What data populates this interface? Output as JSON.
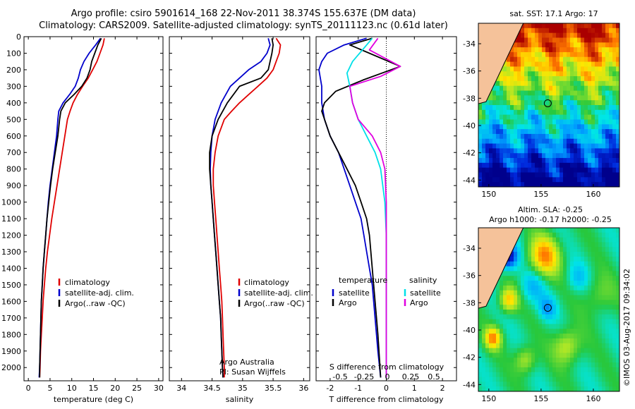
{
  "header": {
    "line1": "Argo profile: csiro 5901614_168 22-Nov-2011 38.374S 155.637E (DM data)",
    "line2": "Climatology: CARS2009. Satellite-adjusted climatology: synTS_20111123.nc (0.61d later)"
  },
  "colors": {
    "climatology": "#e00000",
    "satellite": "#0000cc",
    "argo": "#000000",
    "salinity_satellite": "#00e0e8",
    "salinity_argo": "#e000e0",
    "land": "#f5c29a"
  },
  "chart_data": [
    {
      "type": "line",
      "id": "temperature",
      "xlabel": "temperature (deg C)",
      "ylabel": "",
      "xlim": [
        -1,
        31
      ],
      "ylim": [
        2080,
        0
      ],
      "xticks": [
        0,
        5,
        10,
        15,
        20,
        25,
        30
      ],
      "yticks": [
        0,
        100,
        200,
        300,
        400,
        500,
        600,
        700,
        800,
        900,
        1000,
        1100,
        1200,
        1300,
        1400,
        1500,
        1600,
        1700,
        1800,
        1900,
        2000
      ],
      "legend": [
        "climatology",
        "satellite-adj. clim.",
        "Argo(..raw -QC)"
      ],
      "series": [
        {
          "name": "climatology",
          "color": "#e00000",
          "points": [
            [
              17.5,
              10
            ],
            [
              17.2,
              50
            ],
            [
              16.5,
              100
            ],
            [
              15.8,
              150
            ],
            [
              14.8,
              200
            ],
            [
              13.8,
              250
            ],
            [
              12.5,
              300
            ],
            [
              11.3,
              350
            ],
            [
              10.3,
              400
            ],
            [
              9.6,
              450
            ],
            [
              9.0,
              500
            ],
            [
              8.4,
              600
            ],
            [
              7.8,
              700
            ],
            [
              7.2,
              800
            ],
            [
              6.6,
              900
            ],
            [
              6.0,
              1000
            ],
            [
              5.4,
              1100
            ],
            [
              4.9,
              1200
            ],
            [
              4.4,
              1300
            ],
            [
              4.0,
              1400
            ],
            [
              3.7,
              1500
            ],
            [
              3.4,
              1600
            ],
            [
              3.2,
              1700
            ],
            [
              3.0,
              1800
            ],
            [
              2.8,
              1900
            ],
            [
              2.7,
              2000
            ],
            [
              2.6,
              2060
            ]
          ]
        },
        {
          "name": "satellite-adj. clim.",
          "color": "#0000cc",
          "points": [
            [
              16.6,
              10
            ],
            [
              15.5,
              50
            ],
            [
              14.0,
              100
            ],
            [
              12.8,
              150
            ],
            [
              12.0,
              200
            ],
            [
              11.5,
              250
            ],
            [
              10.8,
              300
            ],
            [
              9.5,
              350
            ],
            [
              8.0,
              400
            ],
            [
              7.0,
              450
            ],
            [
              6.8,
              500
            ],
            [
              6.5,
              600
            ],
            [
              6.0,
              700
            ],
            [
              5.5,
              800
            ],
            [
              5.0,
              900
            ],
            [
              4.6,
              1000
            ],
            [
              4.3,
              1100
            ],
            [
              4.0,
              1200
            ],
            [
              3.7,
              1300
            ],
            [
              3.4,
              1400
            ],
            [
              3.2,
              1500
            ],
            [
              3.0,
              1600
            ],
            [
              2.9,
              1700
            ],
            [
              2.8,
              1800
            ],
            [
              2.7,
              1900
            ],
            [
              2.6,
              2000
            ],
            [
              2.5,
              2060
            ]
          ]
        },
        {
          "name": "Argo(..raw -QC)",
          "color": "#000000",
          "points": [
            [
              16.8,
              10
            ],
            [
              16.0,
              50
            ],
            [
              15.3,
              100
            ],
            [
              14.6,
              150
            ],
            [
              14.2,
              200
            ],
            [
              13.5,
              250
            ],
            [
              12.3,
              300
            ],
            [
              10.5,
              350
            ],
            [
              8.5,
              400
            ],
            [
              7.5,
              450
            ],
            [
              7.2,
              500
            ],
            [
              6.8,
              600
            ],
            [
              6.2,
              700
            ],
            [
              5.6,
              800
            ],
            [
              5.1,
              900
            ],
            [
              4.7,
              1000
            ],
            [
              4.3,
              1100
            ],
            [
              4.0,
              1200
            ],
            [
              3.7,
              1300
            ],
            [
              3.4,
              1400
            ],
            [
              3.2,
              1500
            ],
            [
              3.0,
              1600
            ],
            [
              2.9,
              1700
            ],
            [
              2.8,
              1800
            ],
            [
              2.7,
              1900
            ],
            [
              2.6,
              2000
            ],
            [
              2.6,
              2060
            ]
          ]
        }
      ]
    },
    {
      "type": "line",
      "id": "salinity",
      "xlabel": "salinity",
      "ylabel": "",
      "xlim": [
        33.8,
        36.1
      ],
      "ylim": [
        2080,
        0
      ],
      "xticks": [
        34,
        34.5,
        35,
        35.5,
        36
      ],
      "legend": [
        "climatology",
        "satellite-adj. clim.",
        "Argo(..raw -QC)"
      ],
      "annotation": [
        "Argo Australia",
        "PI: Susan Wijffels"
      ],
      "series": [
        {
          "name": "climatology",
          "color": "#e00000",
          "points": [
            [
              35.55,
              10
            ],
            [
              35.62,
              50
            ],
            [
              35.6,
              100
            ],
            [
              35.55,
              150
            ],
            [
              35.5,
              200
            ],
            [
              35.4,
              250
            ],
            [
              35.25,
              300
            ],
            [
              35.1,
              350
            ],
            [
              34.95,
              400
            ],
            [
              34.82,
              450
            ],
            [
              34.7,
              500
            ],
            [
              34.6,
              600
            ],
            [
              34.55,
              700
            ],
            [
              34.52,
              800
            ],
            [
              34.52,
              900
            ],
            [
              34.54,
              1000
            ],
            [
              34.56,
              1100
            ],
            [
              34.58,
              1200
            ],
            [
              34.6,
              1300
            ],
            [
              34.62,
              1400
            ],
            [
              34.64,
              1500
            ],
            [
              34.66,
              1600
            ],
            [
              34.67,
              1700
            ],
            [
              34.68,
              1800
            ],
            [
              34.69,
              1900
            ],
            [
              34.7,
              2000
            ],
            [
              34.7,
              2060
            ]
          ]
        },
        {
          "name": "satellite-adj. clim.",
          "color": "#0000cc",
          "points": [
            [
              35.42,
              10
            ],
            [
              35.45,
              50
            ],
            [
              35.4,
              100
            ],
            [
              35.3,
              150
            ],
            [
              35.1,
              200
            ],
            [
              34.95,
              250
            ],
            [
              34.8,
              300
            ],
            [
              34.65,
              400
            ],
            [
              34.55,
              500
            ],
            [
              34.5,
              600
            ],
            [
              34.48,
              700
            ],
            [
              34.47,
              800
            ],
            [
              34.48,
              900
            ],
            [
              34.5,
              1000
            ],
            [
              34.52,
              1100
            ],
            [
              34.54,
              1200
            ],
            [
              34.56,
              1300
            ],
            [
              34.58,
              1400
            ],
            [
              34.6,
              1500
            ],
            [
              34.62,
              1600
            ],
            [
              34.64,
              1700
            ],
            [
              34.65,
              1800
            ],
            [
              34.66,
              1900
            ],
            [
              34.67,
              2000
            ],
            [
              34.68,
              2060
            ]
          ]
        },
        {
          "name": "Argo(..raw -QC)",
          "color": "#000000",
          "points": [
            [
              35.48,
              10
            ],
            [
              35.5,
              50
            ],
            [
              35.48,
              100
            ],
            [
              35.45,
              150
            ],
            [
              35.42,
              200
            ],
            [
              35.3,
              250
            ],
            [
              34.95,
              300
            ],
            [
              34.75,
              400
            ],
            [
              34.6,
              500
            ],
            [
              34.5,
              600
            ],
            [
              34.46,
              700
            ],
            [
              34.46,
              800
            ],
            [
              34.48,
              900
            ],
            [
              34.5,
              1000
            ],
            [
              34.52,
              1100
            ],
            [
              34.54,
              1200
            ],
            [
              34.56,
              1300
            ],
            [
              34.58,
              1400
            ],
            [
              34.6,
              1500
            ],
            [
              34.62,
              1600
            ],
            [
              34.64,
              1700
            ],
            [
              34.65,
              1800
            ],
            [
              34.66,
              1900
            ],
            [
              34.67,
              2000
            ],
            [
              34.68,
              2060
            ]
          ]
        }
      ]
    },
    {
      "type": "line",
      "id": "difference",
      "xlabel": "T difference from climatology",
      "xlabel_top": "S difference from climatology",
      "xlim": [
        -2.5,
        2.5
      ],
      "ylim": [
        2080,
        0
      ],
      "xticks_bottom": [
        -2,
        -1,
        0,
        1,
        2
      ],
      "xticks_top_labels": [
        "-0.5",
        "-0.25",
        "0",
        "0.25",
        "0.5"
      ],
      "legend_temperature_title": "temperature",
      "legend_salinity_title": "salinity",
      "legend_temperature": [
        "satellite",
        "Argo"
      ],
      "legend_salinity": [
        "satellite",
        "Argo"
      ],
      "series": [
        {
          "name": "satellite",
          "group": "temperature",
          "color": "#0000cc",
          "points": [
            [
              -0.7,
              10
            ],
            [
              -1.5,
              50
            ],
            [
              -2.1,
              100
            ],
            [
              -2.3,
              150
            ],
            [
              -2.4,
              200
            ],
            [
              -2.3,
              300
            ],
            [
              -2.3,
              400
            ],
            [
              -2.2,
              500
            ],
            [
              -2.0,
              600
            ],
            [
              -1.7,
              700
            ],
            [
              -1.5,
              800
            ],
            [
              -1.3,
              900
            ],
            [
              -1.1,
              1000
            ],
            [
              -0.9,
              1100
            ],
            [
              -0.8,
              1200
            ],
            [
              -0.6,
              1400
            ],
            [
              -0.5,
              1500
            ],
            [
              -0.4,
              1700
            ],
            [
              -0.3,
              1900
            ],
            [
              -0.2,
              2060
            ]
          ]
        },
        {
          "name": "Argo",
          "group": "temperature",
          "color": "#000000",
          "points": [
            [
              -0.5,
              10
            ],
            [
              -1.3,
              50
            ],
            [
              -0.6,
              100
            ],
            [
              0.5,
              180
            ],
            [
              -0.8,
              260
            ],
            [
              -1.8,
              330
            ],
            [
              -2.2,
              400
            ],
            [
              -2.3,
              450
            ],
            [
              -2.0,
              600
            ],
            [
              -1.7,
              700
            ],
            [
              -1.4,
              800
            ],
            [
              -1.1,
              900
            ],
            [
              -0.9,
              1000
            ],
            [
              -0.7,
              1100
            ],
            [
              -0.6,
              1200
            ],
            [
              -0.5,
              1400
            ],
            [
              -0.4,
              1600
            ],
            [
              -0.3,
              1800
            ],
            [
              -0.2,
              2060
            ]
          ]
        },
        {
          "name": "satellite",
          "group": "salinity",
          "color": "#00e0e8",
          "points": [
            [
              -0.5,
              10
            ],
            [
              -0.8,
              70
            ],
            [
              -1.2,
              150
            ],
            [
              -1.4,
              220
            ],
            [
              -1.3,
              300
            ],
            [
              -1.2,
              400
            ],
            [
              -1.0,
              500
            ],
            [
              -0.7,
              600
            ],
            [
              -0.4,
              700
            ],
            [
              -0.2,
              800
            ],
            [
              -0.05,
              1000
            ],
            [
              0.0,
              1200
            ],
            [
              0.0,
              1500
            ],
            [
              0.0,
              1800
            ],
            [
              0.0,
              2060
            ]
          ]
        },
        {
          "name": "Argo",
          "group": "salinity",
          "color": "#e000e0",
          "points": [
            [
              -0.3,
              10
            ],
            [
              -0.6,
              80
            ],
            [
              0.5,
              180
            ],
            [
              -0.2,
              240
            ],
            [
              -1.3,
              300
            ],
            [
              -1.2,
              400
            ],
            [
              -1.0,
              500
            ],
            [
              -0.5,
              600
            ],
            [
              -0.2,
              700
            ],
            [
              -0.05,
              800
            ],
            [
              0.0,
              1000
            ],
            [
              0.0,
              1300
            ],
            [
              0.0,
              1600
            ],
            [
              0.0,
              2060
            ]
          ]
        }
      ]
    },
    {
      "type": "heatmap",
      "id": "sst-map",
      "title": "sat. SST: 17.1 Argo: 17",
      "xlim": [
        149,
        162.5
      ],
      "ylim": [
        -44.5,
        -32.5
      ],
      "xticks": [
        150,
        155,
        160
      ],
      "yticks": [
        -34,
        -36,
        -38,
        -40,
        -42,
        -44
      ],
      "argo_position": [
        155.64,
        -38.37
      ]
    },
    {
      "type": "heatmap",
      "id": "sla-map",
      "title_line1": "Altim. SLA: -0.25",
      "title_line2": "Argo h1000: -0.17 h2000: -0.25",
      "xlim": [
        149,
        162.5
      ],
      "ylim": [
        -44.5,
        -32.5
      ],
      "xticks": [
        150,
        155,
        160
      ],
      "yticks": [
        -34,
        -36,
        -38,
        -40,
        -42,
        -44
      ],
      "argo_position": [
        155.64,
        -38.37
      ]
    }
  ],
  "footer": {
    "credit": "©IMOS 03-Aug-2017 09:34:02"
  }
}
